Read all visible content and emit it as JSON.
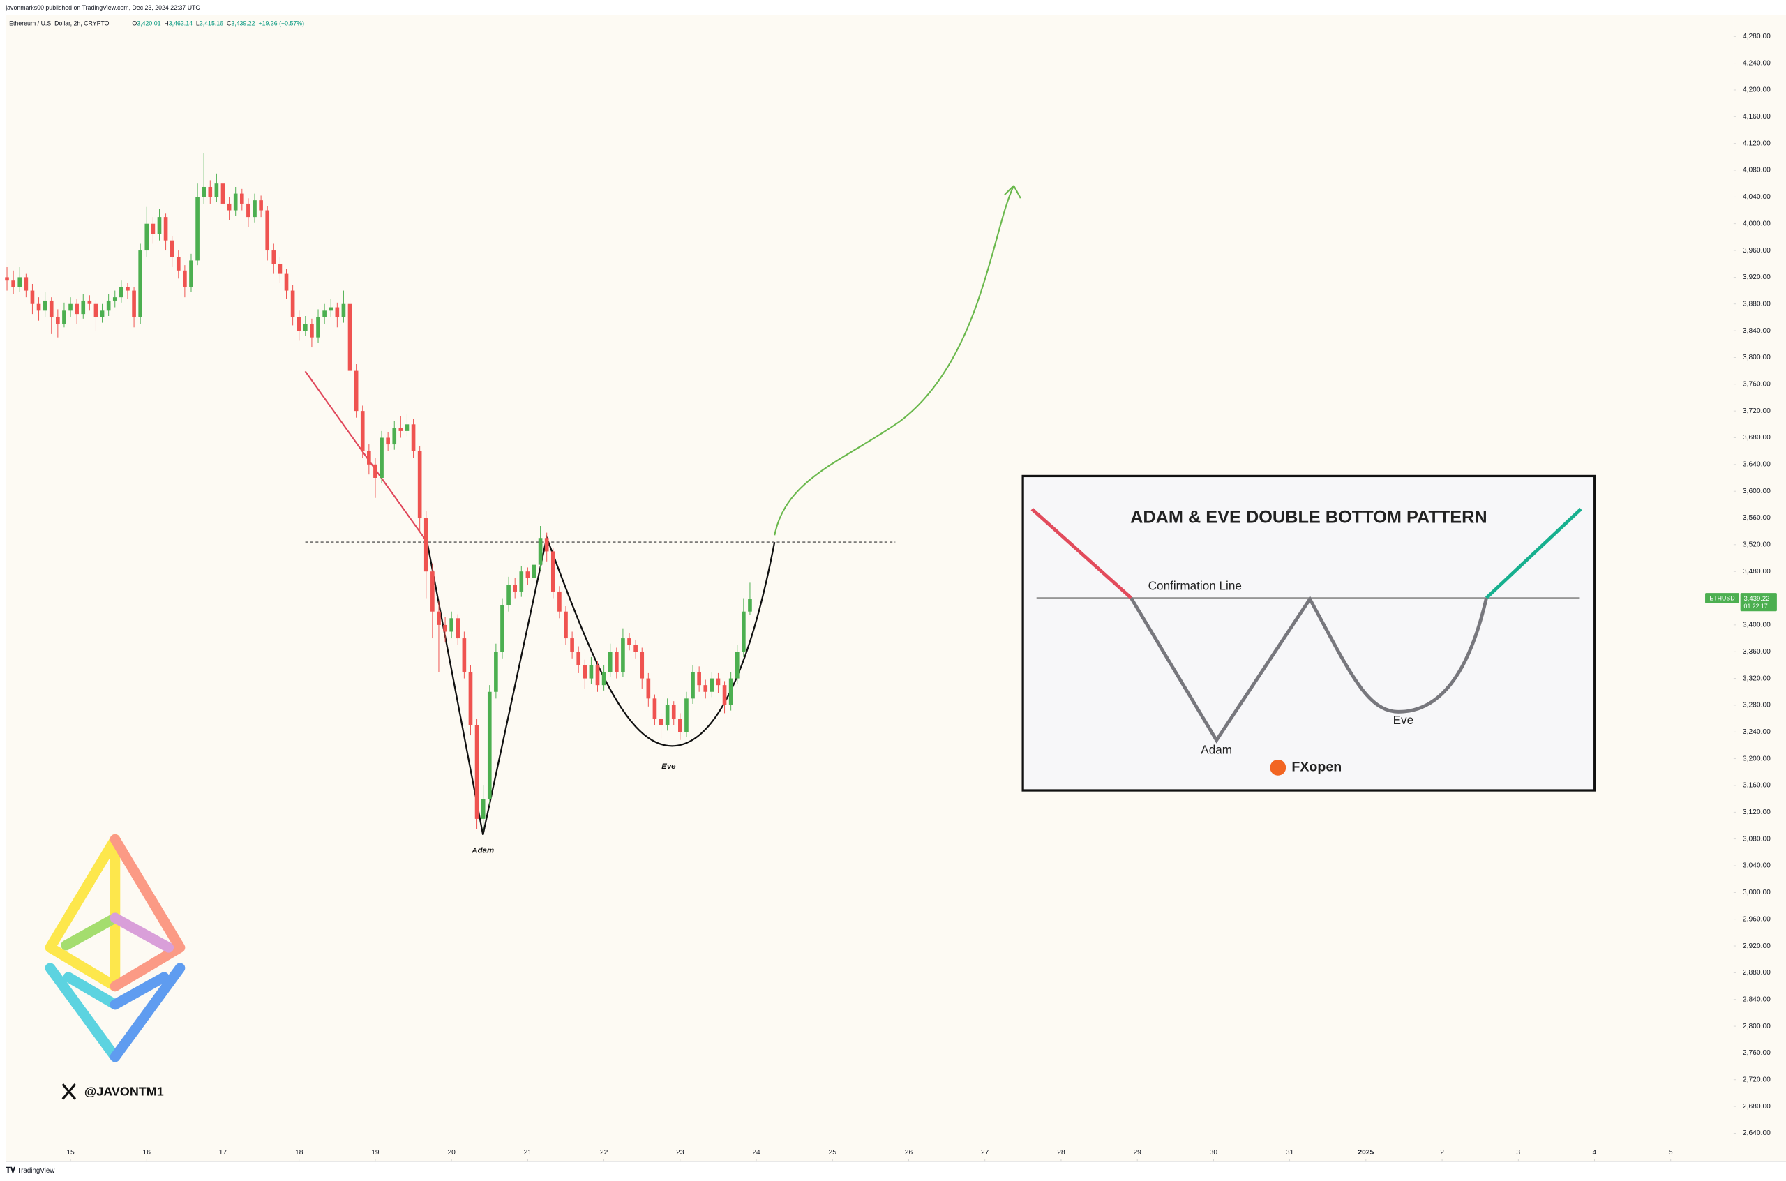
{
  "chart_data": {
    "type": "candlestick",
    "publisher": "javonmarks00 published on TradingView.com, Dec 23, 2024 22:37 UTC",
    "title": "Ethereum / U.S. Dollar, 2h, CRYPTO",
    "ohlc": [
      {
        "label": "O",
        "value": "3,420.01"
      },
      {
        "label": "H",
        "value": "3,463.14"
      },
      {
        "label": "L",
        "value": "3,415.16"
      },
      {
        "label": "C",
        "value": "3,439.22"
      }
    ],
    "change": "+19.36 (+0.57%)",
    "up_color": "#4caf50",
    "down_color": "#ef5350",
    "grid": false,
    "candles": [
      [
        3920,
        3935,
        3900,
        3915
      ],
      [
        3915,
        3930,
        3895,
        3905
      ],
      [
        3905,
        3935,
        3898,
        3920
      ],
      [
        3920,
        3925,
        3890,
        3900
      ],
      [
        3900,
        3910,
        3865,
        3880
      ],
      [
        3880,
        3890,
        3855,
        3870
      ],
      [
        3870,
        3898,
        3860,
        3885
      ],
      [
        3885,
        3890,
        3835,
        3860
      ],
      [
        3860,
        3872,
        3830,
        3850
      ],
      [
        3850,
        3882,
        3845,
        3870
      ],
      [
        3870,
        3890,
        3860,
        3880
      ],
      [
        3880,
        3888,
        3850,
        3865
      ],
      [
        3865,
        3895,
        3858,
        3885
      ],
      [
        3885,
        3893,
        3870,
        3880
      ],
      [
        3880,
        3886,
        3840,
        3860
      ],
      [
        3860,
        3880,
        3852,
        3870
      ],
      [
        3870,
        3895,
        3862,
        3885
      ],
      [
        3885,
        3900,
        3875,
        3890
      ],
      [
        3890,
        3915,
        3882,
        3905
      ],
      [
        3905,
        3912,
        3888,
        3900
      ],
      [
        3900,
        3905,
        3845,
        3860
      ],
      [
        3860,
        3970,
        3850,
        3960
      ],
      [
        3960,
        4025,
        3950,
        4000
      ],
      [
        4000,
        4010,
        3970,
        3985
      ],
      [
        3985,
        4022,
        3975,
        4010
      ],
      [
        4010,
        4015,
        3960,
        3975
      ],
      [
        3975,
        3982,
        3935,
        3950
      ],
      [
        3950,
        3960,
        3918,
        3930
      ],
      [
        3930,
        3938,
        3890,
        3905
      ],
      [
        3905,
        3955,
        3898,
        3945
      ],
      [
        3945,
        4060,
        3938,
        4040
      ],
      [
        4040,
        4105,
        4030,
        4055
      ],
      [
        4055,
        4065,
        4030,
        4040
      ],
      [
        4040,
        4075,
        4032,
        4060
      ],
      [
        4060,
        4068,
        4018,
        4030
      ],
      [
        4030,
        4040,
        4005,
        4020
      ],
      [
        4020,
        4055,
        4012,
        4045
      ],
      [
        4045,
        4052,
        4020,
        4030
      ],
      [
        4030,
        4038,
        3995,
        4010
      ],
      [
        4010,
        4045,
        4002,
        4035
      ],
      [
        4035,
        4042,
        4010,
        4020
      ],
      [
        4020,
        4026,
        3945,
        3960
      ],
      [
        3960,
        3970,
        3925,
        3940
      ],
      [
        3940,
        3950,
        3912,
        3925
      ],
      [
        3925,
        3932,
        3888,
        3900
      ],
      [
        3900,
        3908,
        3848,
        3860
      ],
      [
        3860,
        3870,
        3825,
        3840
      ],
      [
        3840,
        3862,
        3832,
        3850
      ],
      [
        3850,
        3858,
        3815,
        3830
      ],
      [
        3830,
        3872,
        3822,
        3860
      ],
      [
        3860,
        3880,
        3850,
        3870
      ],
      [
        3870,
        3888,
        3860,
        3875
      ],
      [
        3875,
        3882,
        3845,
        3860
      ],
      [
        3860,
        3900,
        3852,
        3880
      ],
      [
        3880,
        3886,
        3770,
        3780
      ],
      [
        3780,
        3790,
        3710,
        3720
      ],
      [
        3720,
        3728,
        3650,
        3660
      ],
      [
        3660,
        3670,
        3625,
        3640
      ],
      [
        3640,
        3650,
        3590,
        3620
      ],
      [
        3620,
        3690,
        3612,
        3680
      ],
      [
        3680,
        3688,
        3660,
        3670
      ],
      [
        3670,
        3705,
        3662,
        3695
      ],
      [
        3695,
        3712,
        3680,
        3690
      ],
      [
        3690,
        3715,
        3682,
        3700
      ],
      [
        3700,
        3708,
        3650,
        3660
      ],
      [
        3660,
        3668,
        3540,
        3560
      ],
      [
        3560,
        3570,
        3440,
        3480
      ],
      [
        3480,
        3492,
        3380,
        3420
      ],
      [
        3420,
        3435,
        3330,
        3400
      ],
      [
        3400,
        3412,
        3375,
        3390
      ],
      [
        3390,
        3420,
        3380,
        3410
      ],
      [
        3410,
        3416,
        3370,
        3380
      ],
      [
        3380,
        3390,
        3320,
        3330
      ],
      [
        3330,
        3340,
        3235,
        3250
      ],
      [
        3250,
        3260,
        3095,
        3110
      ],
      [
        3110,
        3160,
        3092,
        3140
      ],
      [
        3140,
        3310,
        3130,
        3300
      ],
      [
        3300,
        3372,
        3290,
        3360
      ],
      [
        3360,
        3440,
        3350,
        3430
      ],
      [
        3430,
        3472,
        3420,
        3460
      ],
      [
        3460,
        3470,
        3440,
        3450
      ],
      [
        3450,
        3488,
        3442,
        3480
      ],
      [
        3480,
        3486,
        3460,
        3470
      ],
      [
        3470,
        3500,
        3462,
        3490
      ],
      [
        3490,
        3548,
        3482,
        3530
      ],
      [
        3530,
        3538,
        3495,
        3510
      ],
      [
        3510,
        3515,
        3440,
        3450
      ],
      [
        3450,
        3458,
        3410,
        3420
      ],
      [
        3420,
        3428,
        3370,
        3380
      ],
      [
        3380,
        3390,
        3350,
        3360
      ],
      [
        3360,
        3368,
        3328,
        3340
      ],
      [
        3340,
        3348,
        3305,
        3320
      ],
      [
        3320,
        3352,
        3312,
        3340
      ],
      [
        3340,
        3346,
        3300,
        3310
      ],
      [
        3310,
        3340,
        3302,
        3330
      ],
      [
        3330,
        3372,
        3322,
        3360
      ],
      [
        3360,
        3366,
        3320,
        3330
      ],
      [
        3330,
        3395,
        3322,
        3380
      ],
      [
        3380,
        3388,
        3362,
        3370
      ],
      [
        3370,
        3378,
        3350,
        3360
      ],
      [
        3360,
        3366,
        3305,
        3320
      ],
      [
        3320,
        3328,
        3278,
        3290
      ],
      [
        3290,
        3296,
        3250,
        3260
      ],
      [
        3260,
        3268,
        3230,
        3250
      ],
      [
        3250,
        3290,
        3242,
        3280
      ],
      [
        3280,
        3286,
        3250,
        3260
      ],
      [
        3260,
        3268,
        3228,
        3240
      ],
      [
        3240,
        3300,
        3232,
        3290
      ],
      [
        3290,
        3340,
        3282,
        3330
      ],
      [
        3330,
        3338,
        3300,
        3310
      ],
      [
        3310,
        3318,
        3290,
        3300
      ],
      [
        3300,
        3330,
        3292,
        3320
      ],
      [
        3320,
        3328,
        3298,
        3310
      ],
      [
        3310,
        3316,
        3268,
        3280
      ],
      [
        3280,
        3330,
        3272,
        3320
      ],
      [
        3320,
        3370,
        3312,
        3360
      ],
      [
        3360,
        3440,
        3352,
        3420
      ],
      [
        3420.01,
        3463.14,
        3415.16,
        3439.22
      ]
    ],
    "xlim": [
      -0.2,
      271.9
    ],
    "xticks": [
      {
        "value": 10,
        "label": "15"
      },
      {
        "value": 22,
        "label": "16"
      },
      {
        "value": 34,
        "label": "17"
      },
      {
        "value": 46,
        "label": "18"
      },
      {
        "value": 58,
        "label": "19"
      },
      {
        "value": 70,
        "label": "20"
      },
      {
        "value": 82,
        "label": "21"
      },
      {
        "value": 94,
        "label": "22"
      },
      {
        "value": 106,
        "label": "23"
      },
      {
        "value": 118,
        "label": "24"
      },
      {
        "value": 130,
        "label": "25"
      },
      {
        "value": 142,
        "label": "26"
      },
      {
        "value": 154,
        "label": "27"
      },
      {
        "value": 166,
        "label": "28"
      },
      {
        "value": 178,
        "label": "29"
      },
      {
        "value": 190,
        "label": "30"
      },
      {
        "value": 202,
        "label": "31"
      },
      {
        "value": 214,
        "label": "2025"
      },
      {
        "value": 226,
        "label": "2"
      },
      {
        "value": 238,
        "label": "3"
      },
      {
        "value": 250,
        "label": "4"
      },
      {
        "value": 262,
        "label": "5"
      }
    ],
    "ylim": [
      2626.4,
      4312.4
    ],
    "yticks": [
      {
        "value": 2640,
        "label": "2,640.00"
      },
      {
        "value": 2680,
        "label": "2,680.00"
      },
      {
        "value": 2720,
        "label": "2,720.00"
      },
      {
        "value": 2760,
        "label": "2,760.00"
      },
      {
        "value": 2800,
        "label": "2,800.00"
      },
      {
        "value": 2840,
        "label": "2,840.00"
      },
      {
        "value": 2880,
        "label": "2,880.00"
      },
      {
        "value": 2920,
        "label": "2,920.00"
      },
      {
        "value": 2960,
        "label": "2,960.00"
      },
      {
        "value": 3000,
        "label": "3,000.00"
      },
      {
        "value": 3040,
        "label": "3,040.00"
      },
      {
        "value": 3080,
        "label": "3,080.00"
      },
      {
        "value": 3120,
        "label": "3,120.00"
      },
      {
        "value": 3160,
        "label": "3,160.00"
      },
      {
        "value": 3200,
        "label": "3,200.00"
      },
      {
        "value": 3240,
        "label": "3,240.00"
      },
      {
        "value": 3280,
        "label": "3,280.00"
      },
      {
        "value": 3320,
        "label": "3,320.00"
      },
      {
        "value": 3360,
        "label": "3,360.00"
      },
      {
        "value": 3400,
        "label": "3,400.00"
      },
      {
        "value": 3440,
        "label": "3,440.00"
      },
      {
        "value": 3480,
        "label": "3,480.00"
      },
      {
        "value": 3520,
        "label": "3,520.00"
      },
      {
        "value": 3560,
        "label": "3,560.00"
      },
      {
        "value": 3600,
        "label": "3,600.00"
      },
      {
        "value": 3640,
        "label": "3,640.00"
      },
      {
        "value": 3680,
        "label": "3,680.00"
      },
      {
        "value": 3720,
        "label": "3,720.00"
      },
      {
        "value": 3760,
        "label": "3,760.00"
      },
      {
        "value": 3800,
        "label": "3,800.00"
      },
      {
        "value": 3840,
        "label": "3,840.00"
      },
      {
        "value": 3880,
        "label": "3,880.00"
      },
      {
        "value": 3920,
        "label": "3,920.00"
      },
      {
        "value": 3960,
        "label": "3,960.00"
      },
      {
        "value": 4000,
        "label": "4,000.00"
      },
      {
        "value": 4040,
        "label": "4,040.00"
      },
      {
        "value": 4080,
        "label": "4,080.00"
      },
      {
        "value": 4120,
        "label": "4,120.00"
      },
      {
        "value": 4160,
        "label": "4,160.00"
      },
      {
        "value": 4200,
        "label": "4,200.00"
      },
      {
        "value": 4240,
        "label": "4,240.00"
      },
      {
        "value": 4280,
        "label": "4,280.00"
      }
    ],
    "price_label": {
      "symbol": "ETHUSD",
      "price": "3,439.22",
      "countdown": "01:22:17"
    },
    "annotations": [
      "Adam",
      "Eve"
    ],
    "watermark": "@JAVONTM1",
    "footer": "TradingView",
    "inset": {
      "title": "ADAM & EVE DOUBLE BOTTOM PATTERN",
      "confirmation": "Confirmation Line",
      "adam": "Adam",
      "eve": "Eve",
      "logo": "FXopen"
    }
  }
}
